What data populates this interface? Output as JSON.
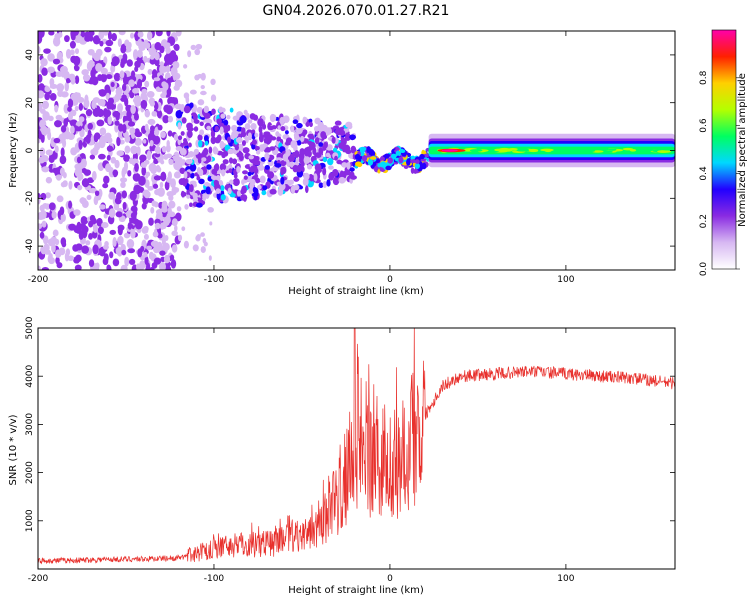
{
  "figure_title": "GN04.2026.070.01.27.R21",
  "chart_data": [
    {
      "type": "heatmap",
      "name": "spectrogram",
      "xlabel": "Height of straight line (km)",
      "ylabel": "Frequency (Hz)",
      "xlim": [
        -200,
        162
      ],
      "ylim": [
        -50,
        50
      ],
      "x_ticks": [
        -200,
        -100,
        0,
        100
      ],
      "y_ticks": [
        -40,
        -20,
        0,
        20,
        40
      ],
      "colorbar": {
        "label": "Normalized spectral amplitude",
        "range": [
          0.0,
          1.0
        ],
        "ticks": [
          "0.0",
          "0.2",
          "0.4",
          "0.6",
          "0.8"
        ],
        "colors": [
          "#ffffff",
          "#d7b8f2",
          "#8a2be2",
          "#2200ff",
          "#00d8ff",
          "#00ff60",
          "#b4ff00",
          "#ffd000",
          "#ff2000",
          "#ff00aa"
        ]
      },
      "features": [
        {
          "x_range": [
            -200,
            -120
          ],
          "freq_range": [
            -50,
            50
          ],
          "amplitude": 0.08,
          "description_kind": "noise"
        },
        {
          "x_range": [
            -120,
            -20
          ],
          "freq_range": [
            -20,
            15
          ],
          "amplitude": 0.2
        },
        {
          "x_range": [
            -20,
            20
          ],
          "freq_range": [
            -8,
            3
          ],
          "amplitude": 0.45
        },
        {
          "x_range": [
            20,
            162
          ],
          "freq_range": [
            -2,
            2
          ],
          "amplitude": 0.55,
          "peak_x": 35,
          "peak_amplitude": 0.9
        }
      ]
    },
    {
      "type": "line",
      "name": "snr",
      "xlabel": "Height of straight line (km)",
      "ylabel": "SNR (10 * v/v)",
      "xlim": [
        -200,
        162
      ],
      "ylim": [
        0,
        5000
      ],
      "x_ticks": [
        -200,
        -100,
        0,
        100
      ],
      "y_ticks": [
        1000,
        2000,
        3000,
        4000,
        5000
      ],
      "color": "#e8302c",
      "series": [
        {
          "name": "SNR",
          "x": [
            -200,
            -180,
            -160,
            -140,
            -120,
            -110,
            -100,
            -80,
            -60,
            -50,
            -40,
            -30,
            -25,
            -20,
            -15,
            -10,
            -5,
            0,
            10,
            20,
            30,
            40,
            60,
            80,
            100,
            120,
            140,
            162
          ],
          "y": [
            170,
            180,
            200,
            210,
            230,
            320,
            450,
            520,
            580,
            700,
            1000,
            1500,
            2000,
            2600,
            2200,
            2400,
            1800,
            2000,
            2600,
            3200,
            3800,
            4000,
            4050,
            4100,
            4050,
            4000,
            3950,
            3850
          ]
        }
      ]
    }
  ]
}
